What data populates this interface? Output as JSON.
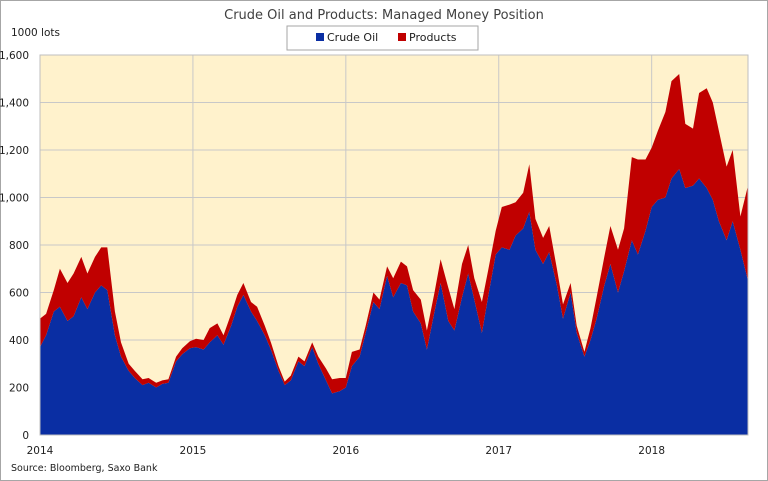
{
  "chart_data": {
    "type": "area",
    "title": "Crude Oil and Products: Managed Money Position",
    "ylabel": "1000 lots",
    "xlabel": "",
    "source": "Source: Bloomberg, Saxo Bank",
    "x_ticks": [
      "2014",
      "2015",
      "2016",
      "2017",
      "2018"
    ],
    "y_ticks": [
      "0",
      "200",
      "400",
      "600",
      "800",
      "1,000",
      "1,200",
      "1,400",
      "1,600"
    ],
    "ylim": [
      0,
      1600
    ],
    "xlim": [
      2014.0,
      2018.63
    ],
    "stacked": true,
    "grid": true,
    "legend_position": "top-center",
    "plot_background": "#fff2cc",
    "series": [
      {
        "name": "Crude Oil",
        "color": "#0a2ea3",
        "points": [
          [
            2014.0,
            370
          ],
          [
            2014.04,
            420
          ],
          [
            2014.09,
            520
          ],
          [
            2014.13,
            540
          ],
          [
            2014.18,
            480
          ],
          [
            2014.22,
            500
          ],
          [
            2014.27,
            580
          ],
          [
            2014.31,
            530
          ],
          [
            2014.36,
            600
          ],
          [
            2014.4,
            630
          ],
          [
            2014.44,
            610
          ],
          [
            2014.49,
            420
          ],
          [
            2014.53,
            330
          ],
          [
            2014.58,
            270
          ],
          [
            2014.62,
            240
          ],
          [
            2014.67,
            210
          ],
          [
            2014.71,
            220
          ],
          [
            2014.76,
            200
          ],
          [
            2014.8,
            215
          ],
          [
            2014.84,
            220
          ],
          [
            2014.89,
            310
          ],
          [
            2014.93,
            340
          ],
          [
            2014.98,
            365
          ],
          [
            2015.02,
            370
          ],
          [
            2015.07,
            360
          ],
          [
            2015.11,
            390
          ],
          [
            2015.16,
            420
          ],
          [
            2015.2,
            380
          ],
          [
            2015.25,
            460
          ],
          [
            2015.29,
            540
          ],
          [
            2015.33,
            590
          ],
          [
            2015.38,
            520
          ],
          [
            2015.42,
            480
          ],
          [
            2015.47,
            420
          ],
          [
            2015.51,
            360
          ],
          [
            2015.56,
            270
          ],
          [
            2015.6,
            210
          ],
          [
            2015.64,
            230
          ],
          [
            2015.69,
            310
          ],
          [
            2015.73,
            290
          ],
          [
            2015.78,
            370
          ],
          [
            2015.82,
            300
          ],
          [
            2015.87,
            230
          ],
          [
            2015.91,
            175
          ],
          [
            2015.96,
            185
          ],
          [
            2016.0,
            200
          ],
          [
            2016.04,
            290
          ],
          [
            2016.09,
            330
          ],
          [
            2016.13,
            430
          ],
          [
            2016.18,
            560
          ],
          [
            2016.22,
            530
          ],
          [
            2016.27,
            670
          ],
          [
            2016.31,
            580
          ],
          [
            2016.36,
            640
          ],
          [
            2016.4,
            630
          ],
          [
            2016.44,
            520
          ],
          [
            2016.49,
            470
          ],
          [
            2016.53,
            360
          ],
          [
            2016.58,
            520
          ],
          [
            2016.62,
            640
          ],
          [
            2016.67,
            480
          ],
          [
            2016.71,
            440
          ],
          [
            2016.76,
            580
          ],
          [
            2016.8,
            680
          ],
          [
            2016.84,
            570
          ],
          [
            2016.89,
            430
          ],
          [
            2016.93,
            580
          ],
          [
            2016.98,
            760
          ],
          [
            2017.02,
            790
          ],
          [
            2017.07,
            780
          ],
          [
            2017.11,
            840
          ],
          [
            2017.16,
            870
          ],
          [
            2017.2,
            940
          ],
          [
            2017.24,
            780
          ],
          [
            2017.29,
            720
          ],
          [
            2017.33,
            770
          ],
          [
            2017.38,
            630
          ],
          [
            2017.42,
            490
          ],
          [
            2017.47,
            600
          ],
          [
            2017.51,
            430
          ],
          [
            2017.56,
            330
          ],
          [
            2017.6,
            400
          ],
          [
            2017.64,
            490
          ],
          [
            2017.69,
            630
          ],
          [
            2017.73,
            720
          ],
          [
            2017.78,
            600
          ],
          [
            2017.82,
            690
          ],
          [
            2017.87,
            820
          ],
          [
            2017.91,
            760
          ],
          [
            2017.96,
            860
          ],
          [
            2018.0,
            960
          ],
          [
            2018.04,
            990
          ],
          [
            2018.09,
            1000
          ],
          [
            2018.13,
            1080
          ],
          [
            2018.18,
            1120
          ],
          [
            2018.22,
            1040
          ],
          [
            2018.27,
            1050
          ],
          [
            2018.31,
            1080
          ],
          [
            2018.36,
            1040
          ],
          [
            2018.4,
            990
          ],
          [
            2018.44,
            900
          ],
          [
            2018.49,
            820
          ],
          [
            2018.53,
            900
          ],
          [
            2018.58,
            780
          ],
          [
            2018.63,
            650
          ]
        ]
      },
      {
        "name": "Products",
        "color": "#c00000",
        "points": [
          [
            2014.0,
            120
          ],
          [
            2014.04,
            90
          ],
          [
            2014.09,
            90
          ],
          [
            2014.13,
            160
          ],
          [
            2014.18,
            160
          ],
          [
            2014.22,
            180
          ],
          [
            2014.27,
            170
          ],
          [
            2014.31,
            150
          ],
          [
            2014.36,
            150
          ],
          [
            2014.4,
            160
          ],
          [
            2014.44,
            180
          ],
          [
            2014.49,
            100
          ],
          [
            2014.53,
            60
          ],
          [
            2014.58,
            30
          ],
          [
            2014.62,
            30
          ],
          [
            2014.67,
            25
          ],
          [
            2014.71,
            20
          ],
          [
            2014.76,
            20
          ],
          [
            2014.8,
            15
          ],
          [
            2014.84,
            15
          ],
          [
            2014.89,
            20
          ],
          [
            2014.93,
            25
          ],
          [
            2014.98,
            30
          ],
          [
            2015.02,
            35
          ],
          [
            2015.07,
            40
          ],
          [
            2015.11,
            60
          ],
          [
            2015.16,
            50
          ],
          [
            2015.2,
            40
          ],
          [
            2015.25,
            50
          ],
          [
            2015.29,
            50
          ],
          [
            2015.33,
            50
          ],
          [
            2015.38,
            40
          ],
          [
            2015.42,
            60
          ],
          [
            2015.47,
            40
          ],
          [
            2015.51,
            30
          ],
          [
            2015.56,
            20
          ],
          [
            2015.6,
            15
          ],
          [
            2015.64,
            20
          ],
          [
            2015.69,
            20
          ],
          [
            2015.73,
            20
          ],
          [
            2015.78,
            20
          ],
          [
            2015.82,
            30
          ],
          [
            2015.87,
            50
          ],
          [
            2015.91,
            60
          ],
          [
            2015.96,
            55
          ],
          [
            2016.0,
            40
          ],
          [
            2016.04,
            60
          ],
          [
            2016.09,
            30
          ],
          [
            2016.13,
            30
          ],
          [
            2016.18,
            40
          ],
          [
            2016.22,
            40
          ],
          [
            2016.27,
            40
          ],
          [
            2016.31,
            80
          ],
          [
            2016.36,
            90
          ],
          [
            2016.4,
            80
          ],
          [
            2016.44,
            90
          ],
          [
            2016.49,
            100
          ],
          [
            2016.53,
            80
          ],
          [
            2016.58,
            80
          ],
          [
            2016.62,
            100
          ],
          [
            2016.67,
            140
          ],
          [
            2016.71,
            90
          ],
          [
            2016.76,
            140
          ],
          [
            2016.8,
            120
          ],
          [
            2016.84,
            90
          ],
          [
            2016.89,
            130
          ],
          [
            2016.93,
            110
          ],
          [
            2016.98,
            100
          ],
          [
            2017.02,
            170
          ],
          [
            2017.07,
            190
          ],
          [
            2017.11,
            140
          ],
          [
            2017.16,
            150
          ],
          [
            2017.2,
            200
          ],
          [
            2017.24,
            130
          ],
          [
            2017.29,
            110
          ],
          [
            2017.33,
            110
          ],
          [
            2017.38,
            70
          ],
          [
            2017.42,
            60
          ],
          [
            2017.47,
            40
          ],
          [
            2017.51,
            30
          ],
          [
            2017.56,
            20
          ],
          [
            2017.6,
            50
          ],
          [
            2017.64,
            90
          ],
          [
            2017.69,
            120
          ],
          [
            2017.73,
            160
          ],
          [
            2017.78,
            180
          ],
          [
            2017.82,
            180
          ],
          [
            2017.87,
            350
          ],
          [
            2017.91,
            400
          ],
          [
            2017.96,
            300
          ],
          [
            2018.0,
            250
          ],
          [
            2018.04,
            290
          ],
          [
            2018.09,
            360
          ],
          [
            2018.13,
            410
          ],
          [
            2018.18,
            400
          ],
          [
            2018.22,
            270
          ],
          [
            2018.27,
            240
          ],
          [
            2018.31,
            360
          ],
          [
            2018.36,
            420
          ],
          [
            2018.4,
            410
          ],
          [
            2018.44,
            380
          ],
          [
            2018.49,
            310
          ],
          [
            2018.53,
            300
          ],
          [
            2018.58,
            140
          ],
          [
            2018.63,
            400
          ]
        ]
      }
    ]
  }
}
